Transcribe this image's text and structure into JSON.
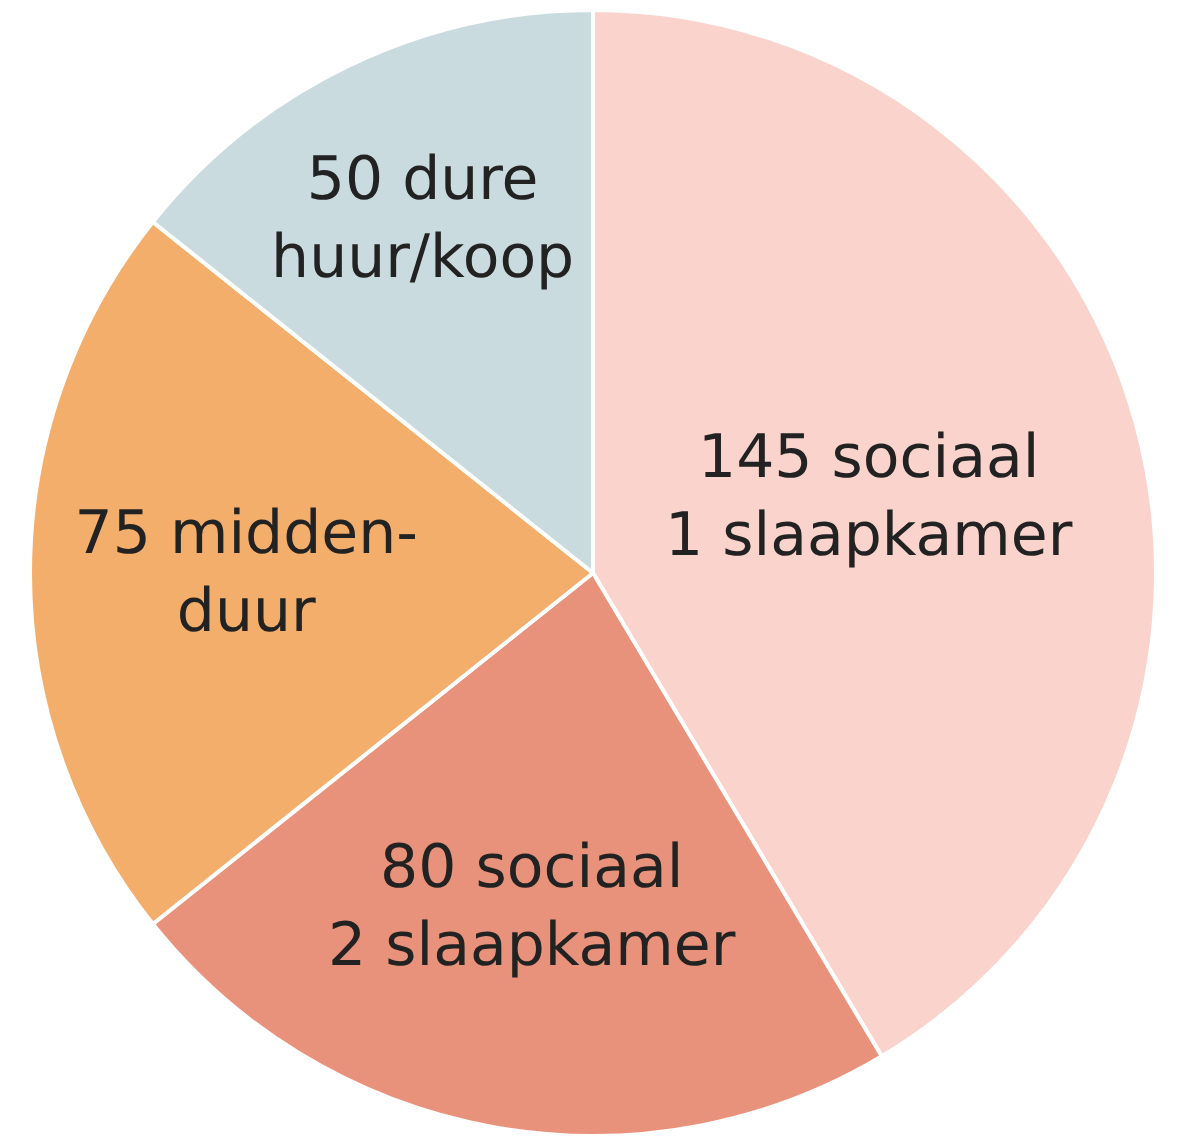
{
  "chart_data": {
    "type": "pie",
    "categories": [
      "145 sociaal\n1 slaapkamer",
      "80 sociaal\n2 slaapkamer",
      "75 midden-\nduur",
      "50 dure\nhuur/koop"
    ],
    "values": [
      145,
      80,
      75,
      50
    ],
    "colors": [
      "#f9d3cc",
      "#e8927c",
      "#f4ae6c",
      "#cadbe0"
    ],
    "legend": false
  }
}
